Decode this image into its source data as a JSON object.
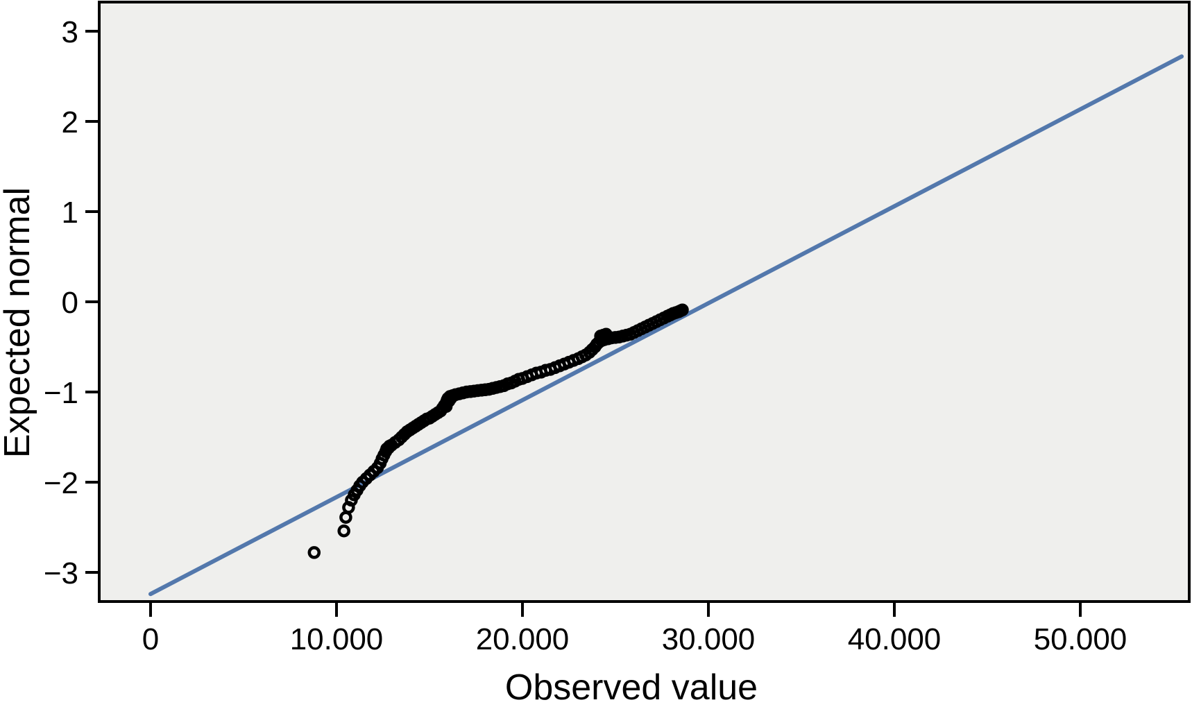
{
  "chart_data": {
    "type": "scatter",
    "subtype": "normal-qq-plot",
    "title": "",
    "xlabel": "Observed value",
    "ylabel": "Expected normal",
    "xlim": [
      -2760,
      55860
    ],
    "ylim": [
      -3.32,
      3.32
    ],
    "grid": false,
    "legend": "none",
    "plot_background": "#efefed",
    "frame_color": "#000000",
    "x_ticks": [
      {
        "value": 0,
        "label": "0"
      },
      {
        "value": 10000,
        "label": "10.000"
      },
      {
        "value": 20000,
        "label": "20.000"
      },
      {
        "value": 30000,
        "label": "30.000"
      },
      {
        "value": 40000,
        "label": "40.000"
      },
      {
        "value": 50000,
        "label": "50.000"
      }
    ],
    "y_ticks": [
      {
        "value": 3,
        "label": "3"
      },
      {
        "value": 2,
        "label": "2"
      },
      {
        "value": 1,
        "label": "1"
      },
      {
        "value": 0,
        "label": "0"
      },
      {
        "value": -1,
        "label": "−1"
      },
      {
        "value": -2,
        "label": "−2"
      },
      {
        "value": -3,
        "label": "−3"
      }
    ],
    "reference_line": {
      "x1": 0,
      "y1": -3.24,
      "x2": 55450,
      "y2": 2.72,
      "color": "#5378ac",
      "width": 6
    },
    "marker": {
      "shape": "open-circle",
      "color": "#000000",
      "radius": 7,
      "stroke_width": 4.5
    },
    "points": [
      [
        8800,
        -2.78
      ],
      [
        10400,
        -2.54
      ],
      [
        10500,
        -2.39
      ],
      [
        10650,
        -2.28
      ],
      [
        10800,
        -2.2
      ],
      [
        10950,
        -2.14
      ],
      [
        11100,
        -2.09
      ],
      [
        11250,
        -2.04
      ],
      [
        11400,
        -2.0
      ],
      [
        11600,
        -1.96
      ],
      [
        11800,
        -1.92
      ],
      [
        12000,
        -1.88
      ],
      [
        12200,
        -1.84
      ],
      [
        12350,
        -1.79
      ],
      [
        12450,
        -1.74
      ],
      [
        12550,
        -1.7
      ],
      [
        12650,
        -1.66
      ],
      [
        12700,
        -1.63
      ],
      [
        12800,
        -1.62
      ],
      [
        12850,
        -1.6
      ],
      [
        12950,
        -1.59
      ],
      [
        13150,
        -1.56
      ],
      [
        13350,
        -1.53
      ],
      [
        13500,
        -1.5
      ],
      [
        13650,
        -1.47
      ],
      [
        13800,
        -1.44
      ],
      [
        13950,
        -1.42
      ],
      [
        14100,
        -1.4
      ],
      [
        14250,
        -1.38
      ],
      [
        14400,
        -1.36
      ],
      [
        14550,
        -1.34
      ],
      [
        14700,
        -1.32
      ],
      [
        14850,
        -1.3
      ],
      [
        15000,
        -1.29
      ],
      [
        15150,
        -1.27
      ],
      [
        15300,
        -1.25
      ],
      [
        15450,
        -1.23
      ],
      [
        15600,
        -1.21
      ],
      [
        15700,
        -1.18
      ],
      [
        15800,
        -1.15
      ],
      [
        15900,
        -1.16
      ],
      [
        15900,
        -1.12
      ],
      [
        15950,
        -1.09
      ],
      [
        16000,
        -1.07
      ],
      [
        16050,
        -1.1
      ],
      [
        16100,
        -1.05
      ],
      [
        16150,
        -1.07
      ],
      [
        16250,
        -1.04
      ],
      [
        16400,
        -1.03
      ],
      [
        16600,
        -1.02
      ],
      [
        16800,
        -1.01
      ],
      [
        17000,
        -1.0
      ],
      [
        17200,
        -0.995
      ],
      [
        17400,
        -0.99
      ],
      [
        17600,
        -0.985
      ],
      [
        17800,
        -0.98
      ],
      [
        18000,
        -0.975
      ],
      [
        18200,
        -0.97
      ],
      [
        18400,
        -0.96
      ],
      [
        18600,
        -0.95
      ],
      [
        18800,
        -0.94
      ],
      [
        19000,
        -0.93
      ],
      [
        19200,
        -0.91
      ],
      [
        19400,
        -0.9
      ],
      [
        19600,
        -0.88
      ],
      [
        19800,
        -0.86
      ],
      [
        20000,
        -0.85
      ],
      [
        20250,
        -0.83
      ],
      [
        20500,
        -0.81
      ],
      [
        20750,
        -0.79
      ],
      [
        21000,
        -0.78
      ],
      [
        21250,
        -0.76
      ],
      [
        21500,
        -0.75
      ],
      [
        21750,
        -0.73
      ],
      [
        22000,
        -0.71
      ],
      [
        22250,
        -0.69
      ],
      [
        22500,
        -0.67
      ],
      [
        22750,
        -0.65
      ],
      [
        23000,
        -0.63
      ],
      [
        23200,
        -0.61
      ],
      [
        23400,
        -0.59
      ],
      [
        23600,
        -0.56
      ],
      [
        23750,
        -0.53
      ],
      [
        23900,
        -0.5
      ],
      [
        24000,
        -0.47
      ],
      [
        24100,
        -0.45
      ],
      [
        24200,
        -0.38
      ],
      [
        24250,
        -0.43
      ],
      [
        24350,
        -0.37
      ],
      [
        24400,
        -0.42
      ],
      [
        24500,
        -0.36
      ],
      [
        24600,
        -0.41
      ],
      [
        24800,
        -0.4
      ],
      [
        25000,
        -0.395
      ],
      [
        25200,
        -0.39
      ],
      [
        25400,
        -0.38
      ],
      [
        25600,
        -0.37
      ],
      [
        25800,
        -0.36
      ],
      [
        26000,
        -0.34
      ],
      [
        26200,
        -0.32
      ],
      [
        26400,
        -0.3
      ],
      [
        26600,
        -0.28
      ],
      [
        26800,
        -0.26
      ],
      [
        27000,
        -0.24
      ],
      [
        27200,
        -0.22
      ],
      [
        27400,
        -0.2
      ],
      [
        27600,
        -0.18
      ],
      [
        27800,
        -0.16
      ],
      [
        27950,
        -0.145
      ],
      [
        28100,
        -0.13
      ],
      [
        28250,
        -0.12
      ],
      [
        28400,
        -0.11
      ],
      [
        28500,
        -0.1
      ],
      [
        28600,
        -0.09
      ]
    ]
  }
}
